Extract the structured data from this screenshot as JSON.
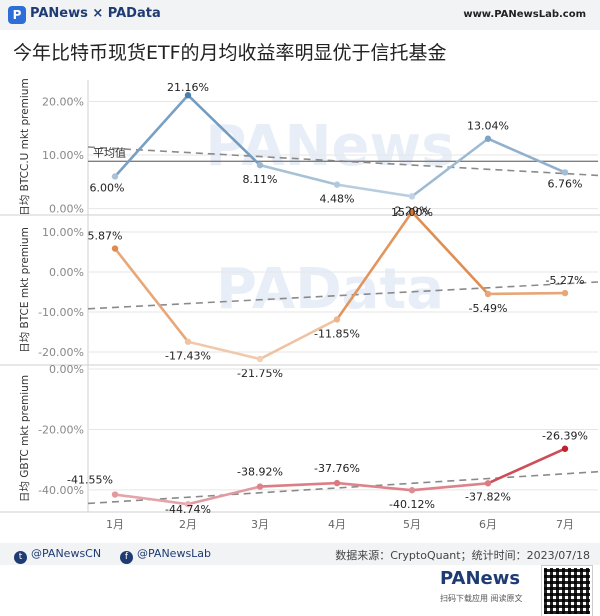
{
  "header": {
    "brand": "PANews × PAData",
    "site": "www.PANewsLab.com"
  },
  "title": "今年比特币现货ETF的月均收益率明显优于信托基金",
  "footer": {
    "twitter": "@PANewsCN",
    "facebook": "@PANewsLab",
    "source": "数据来源：CryptoQuant；统计时间：2023/07/18",
    "logo": "PANews",
    "sub": "扫码下载应用 阅读原文"
  },
  "colors": {
    "btcc": "#4a7fae",
    "btce": "#d9742a",
    "gbtc": "#c0202e",
    "avg_line": "#7f7f7f",
    "trend": "#8a8a8a"
  },
  "chart_data": [
    {
      "type": "line",
      "ylabel": "日均 BTCC.U mkt premium",
      "categories": [
        "1月",
        "2月",
        "3月",
        "4月",
        "5月",
        "6月",
        "7月"
      ],
      "values": [
        6.0,
        21.16,
        8.11,
        4.48,
        2.29,
        13.04,
        6.76
      ],
      "labels": [
        "6.00%",
        "21.16%",
        "8.11%",
        "4.48%",
        "2.29%",
        "13.04%",
        "6.76%"
      ],
      "yticks": [
        0,
        10,
        20
      ],
      "ytick_labels": [
        "0.00%",
        "10.00%",
        "20.00%"
      ],
      "ylim": [
        -1,
        24
      ],
      "average_label": "平均值",
      "average": 8.83,
      "trend": [
        11.5,
        6.2
      ]
    },
    {
      "type": "line",
      "ylabel": "日均 BTCE mkt premium",
      "categories": [
        "1月",
        "2月",
        "3月",
        "4月",
        "5月",
        "6月",
        "7月"
      ],
      "values": [
        5.87,
        -17.43,
        -21.75,
        -11.85,
        15.0,
        -5.49,
        -5.27
      ],
      "labels": [
        "5.87%",
        "-17.43%",
        "-21.75%",
        "-11.85%",
        "15.00%",
        "-5.49%",
        "-5.27%"
      ],
      "yticks": [
        -20,
        -10,
        0,
        10
      ],
      "ytick_labels": [
        "-20.00%",
        "-10.00%",
        "0.00%",
        "10.00%"
      ],
      "ylim": [
        -23,
        14
      ],
      "trend": [
        -9.2,
        -2.5
      ]
    },
    {
      "type": "line",
      "ylabel": "日均 GBTC mkt premium",
      "categories": [
        "1月",
        "2月",
        "3月",
        "4月",
        "5月",
        "6月",
        "7月"
      ],
      "values": [
        -41.55,
        -44.74,
        -38.92,
        -37.76,
        -40.12,
        -37.82,
        -26.39
      ],
      "labels": [
        "-41.55%",
        "-44.74%",
        "-38.92%",
        "-37.76%",
        "-40.12%",
        "-37.82%",
        "-26.39%"
      ],
      "yticks": [
        -40,
        -20,
        0
      ],
      "ytick_labels": [
        "-40.00%",
        "-20.00%",
        "0.00%"
      ],
      "ylim": [
        -47,
        1
      ],
      "trend": [
        -44.5,
        -34.0
      ]
    }
  ]
}
